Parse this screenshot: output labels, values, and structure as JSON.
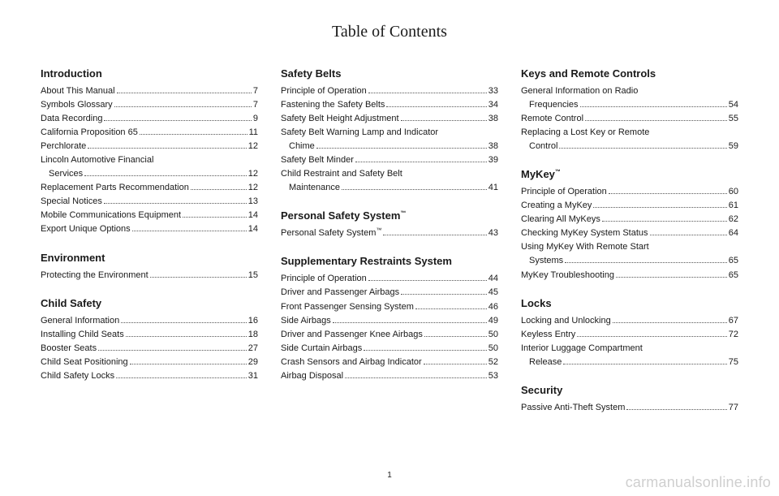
{
  "title": "Table of Contents",
  "pageNumber": "1",
  "watermark": "carmanualsonline.info",
  "columns": [
    {
      "sections": [
        {
          "title": "Introduction",
          "entries": [
            {
              "label": "About This Manual",
              "page": "7"
            },
            {
              "label": "Symbols Glossary",
              "page": "7"
            },
            {
              "label": "Data Recording",
              "page": "9"
            },
            {
              "label": "California Proposition 65",
              "page": "11"
            },
            {
              "label": "Perchlorate",
              "page": "12"
            },
            {
              "label": "Lincoln Automotive Financial",
              "sub": "Services",
              "page": "12"
            },
            {
              "label": "Replacement Parts Recommendation",
              "page": "12"
            },
            {
              "label": "Special Notices",
              "page": "13"
            },
            {
              "label": "Mobile Communications Equipment",
              "page": "14"
            },
            {
              "label": "Export Unique Options",
              "page": "14"
            }
          ]
        },
        {
          "title": "Environment",
          "entries": [
            {
              "label": "Protecting the Environment",
              "page": "15"
            }
          ]
        },
        {
          "title": "Child Safety",
          "entries": [
            {
              "label": "General Information",
              "page": "16"
            },
            {
              "label": "Installing Child Seats",
              "page": "18"
            },
            {
              "label": "Booster Seats",
              "page": "27"
            },
            {
              "label": "Child Seat Positioning",
              "page": "29"
            },
            {
              "label": "Child Safety Locks",
              "page": "31"
            }
          ]
        }
      ]
    },
    {
      "sections": [
        {
          "title": "Safety Belts",
          "entries": [
            {
              "label": "Principle of Operation",
              "page": "33"
            },
            {
              "label": "Fastening the Safety Belts",
              "page": "34"
            },
            {
              "label": "Safety Belt Height Adjustment",
              "page": "38"
            },
            {
              "label": "Safety Belt Warning Lamp and Indicator",
              "sub": "Chime",
              "page": "38"
            },
            {
              "label": "Safety Belt Minder",
              "page": "39"
            },
            {
              "label": "Child Restraint and Safety Belt",
              "sub": "Maintenance",
              "page": "41"
            }
          ]
        },
        {
          "title": "Personal Safety System™",
          "entries": [
            {
              "label": "Personal Safety System™",
              "page": "43"
            }
          ]
        },
        {
          "title": "Supplementary Restraints System",
          "entries": [
            {
              "label": "Principle of Operation",
              "page": "44"
            },
            {
              "label": "Driver and Passenger Airbags",
              "page": "45"
            },
            {
              "label": "Front Passenger Sensing System",
              "page": "46"
            },
            {
              "label": "Side Airbags",
              "page": "49"
            },
            {
              "label": "Driver and Passenger Knee Airbags",
              "page": "50"
            },
            {
              "label": "Side Curtain Airbags",
              "page": "50"
            },
            {
              "label": "Crash Sensors and Airbag Indicator",
              "page": "52"
            },
            {
              "label": "Airbag Disposal",
              "page": "53"
            }
          ]
        }
      ]
    },
    {
      "sections": [
        {
          "title": "Keys and Remote Controls",
          "entries": [
            {
              "label": "General Information on Radio",
              "sub": "Frequencies",
              "page": "54"
            },
            {
              "label": "Remote Control",
              "page": "55"
            },
            {
              "label": "Replacing a Lost Key or Remote",
              "sub": "Control",
              "page": "59"
            }
          ]
        },
        {
          "title": "MyKey™",
          "entries": [
            {
              "label": "Principle of Operation",
              "page": "60"
            },
            {
              "label": "Creating a MyKey",
              "page": "61"
            },
            {
              "label": "Clearing All MyKeys",
              "page": "62"
            },
            {
              "label": "Checking MyKey System Status",
              "page": "64"
            },
            {
              "label": "Using MyKey With Remote Start",
              "sub": "Systems",
              "page": "65"
            },
            {
              "label": "MyKey Troubleshooting",
              "page": "65"
            }
          ]
        },
        {
          "title": "Locks",
          "entries": [
            {
              "label": "Locking and Unlocking",
              "page": "67"
            },
            {
              "label": "Keyless Entry",
              "page": "72"
            },
            {
              "label": "Interior Luggage Compartment",
              "sub": "Release",
              "page": "75"
            }
          ]
        },
        {
          "title": "Security",
          "entries": [
            {
              "label": "Passive Anti-Theft System",
              "page": "77"
            }
          ]
        }
      ]
    }
  ]
}
